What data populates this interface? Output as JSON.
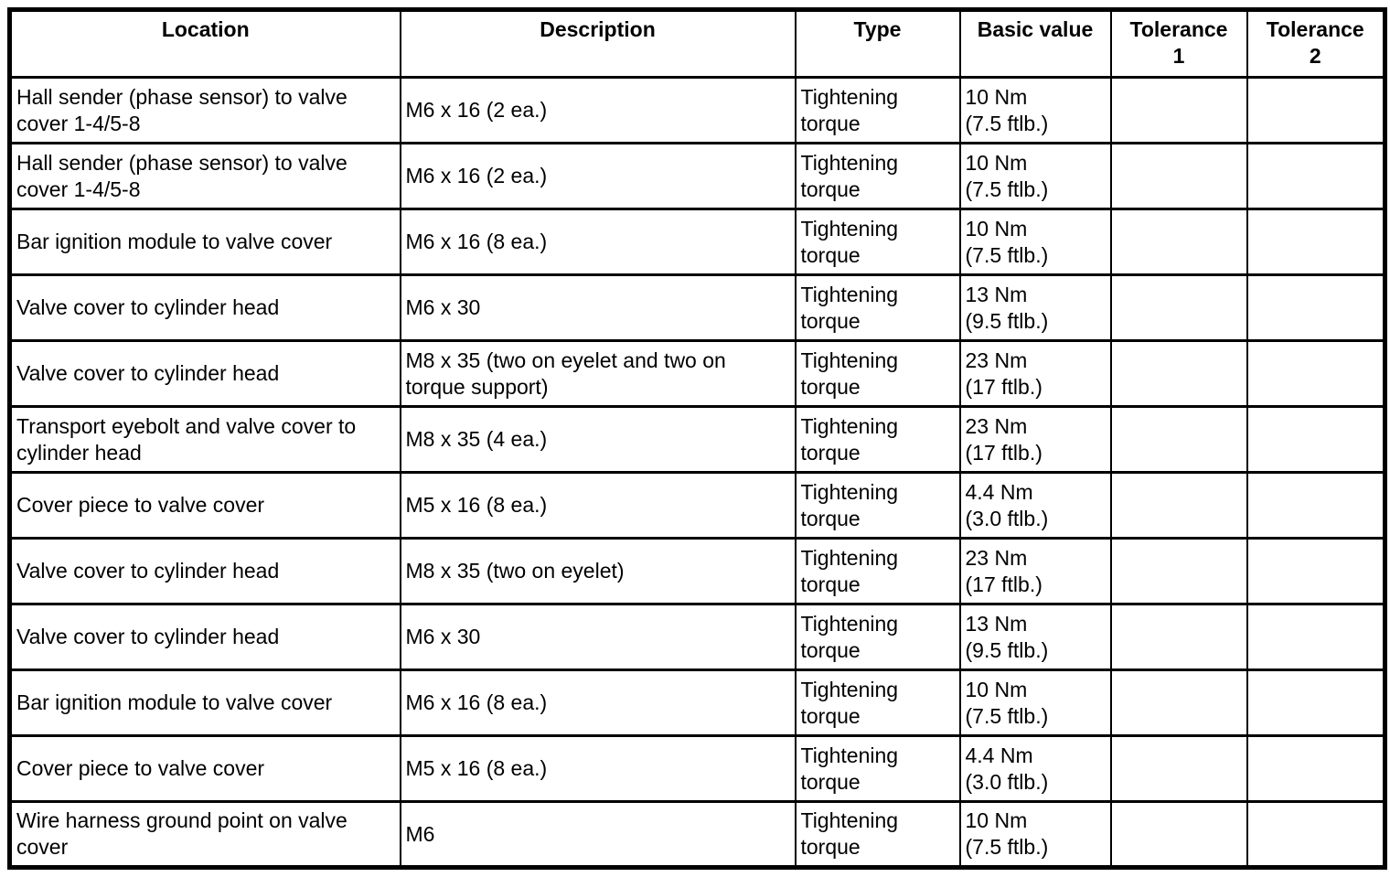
{
  "table": {
    "columns": [
      {
        "label": "Location"
      },
      {
        "label": "Description"
      },
      {
        "label": "Type"
      },
      {
        "label": "Basic value"
      },
      {
        "label": "Tolerance\n1"
      },
      {
        "label": "Tolerance\n2"
      }
    ],
    "rows": [
      {
        "location": "Hall sender (phase sensor) to valve cover 1-4/5-8",
        "description": "M6 x 16 (2 ea.)",
        "type": "Tightening\ntorque",
        "basic_value": "10 Nm\n(7.5 ftlb.)",
        "tolerance1": "",
        "tolerance2": ""
      },
      {
        "location": "Hall sender (phase sensor) to valve cover 1-4/5-8",
        "description": "M6 x 16 (2 ea.)",
        "type": "Tightening\ntorque",
        "basic_value": "10 Nm\n(7.5 ftlb.)",
        "tolerance1": "",
        "tolerance2": ""
      },
      {
        "location": "Bar ignition module to valve cover",
        "description": "M6 x 16 (8 ea.)",
        "type": "Tightening\ntorque",
        "basic_value": "10 Nm\n(7.5 ftlb.)",
        "tolerance1": "",
        "tolerance2": ""
      },
      {
        "location": "Valve cover to cylinder head",
        "description": "M6 x 30",
        "type": "Tightening\ntorque",
        "basic_value": "13 Nm\n(9.5 ftlb.)",
        "tolerance1": "",
        "tolerance2": ""
      },
      {
        "location": "Valve cover to cylinder head",
        "description": "M8 x 35 (two on eyelet and two on torque support)",
        "type": "Tightening\ntorque",
        "basic_value": "23 Nm\n(17 ftlb.)",
        "tolerance1": "",
        "tolerance2": ""
      },
      {
        "location": "Transport eyebolt and valve cover to cylinder head",
        "description": "M8 x 35 (4 ea.)",
        "type": "Tightening\ntorque",
        "basic_value": "23 Nm\n(17 ftlb.)",
        "tolerance1": "",
        "tolerance2": ""
      },
      {
        "location": "Cover piece to valve cover",
        "description": "M5 x 16 (8 ea.)",
        "type": "Tightening\ntorque",
        "basic_value": "4.4 Nm\n(3.0 ftlb.)",
        "tolerance1": "",
        "tolerance2": ""
      },
      {
        "location": "Valve cover to cylinder head",
        "description": "M8 x 35 (two on eyelet)",
        "type": "Tightening\ntorque",
        "basic_value": "23 Nm\n(17 ftlb.)",
        "tolerance1": "",
        "tolerance2": ""
      },
      {
        "location": "Valve cover to cylinder head",
        "description": "M6 x 30",
        "type": "Tightening\ntorque",
        "basic_value": "13 Nm\n(9.5 ftlb.)",
        "tolerance1": "",
        "tolerance2": ""
      },
      {
        "location": "Bar ignition module to valve cover",
        "description": "M6 x 16 (8 ea.)",
        "type": "Tightening\ntorque",
        "basic_value": "10 Nm\n(7.5 ftlb.)",
        "tolerance1": "",
        "tolerance2": ""
      },
      {
        "location": "Cover piece to valve cover",
        "description": "M5 x 16 (8 ea.)",
        "type": "Tightening\ntorque",
        "basic_value": "4.4 Nm\n(3.0 ftlb.)",
        "tolerance1": "",
        "tolerance2": ""
      },
      {
        "location": "Wire harness ground point on valve cover",
        "description": "M6",
        "type": "Tightening\ntorque",
        "basic_value": "10 Nm\n(7.5 ftlb.)",
        "tolerance1": "",
        "tolerance2": ""
      }
    ]
  }
}
